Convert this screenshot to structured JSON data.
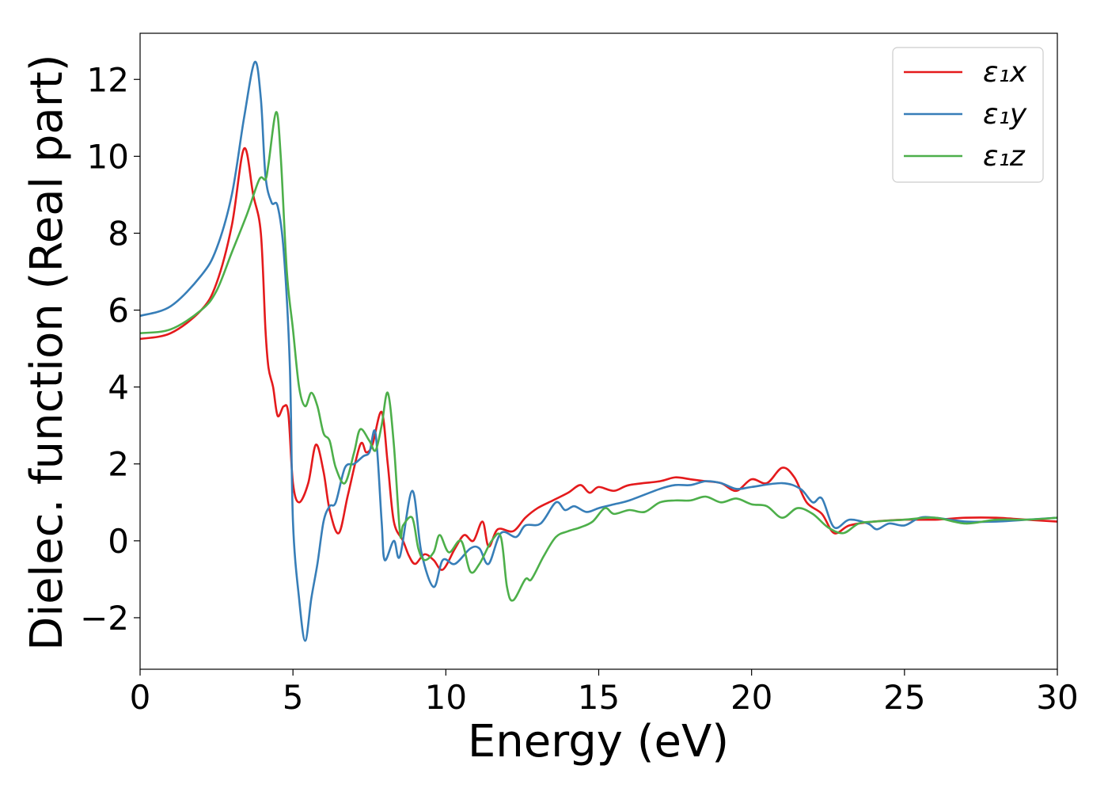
{
  "chart_data": {
    "type": "line",
    "title": "",
    "xlabel": "Energy (eV)",
    "ylabel": "Dielec. function (Real part)",
    "xlim": [
      0,
      30
    ],
    "ylim": [
      -3.34,
      13.2
    ],
    "xticks": [
      0,
      5,
      10,
      15,
      20,
      25,
      30
    ],
    "xtick_labels": [
      "0",
      "5",
      "10",
      "15",
      "20",
      "25",
      "30"
    ],
    "yticks": [
      -2,
      0,
      2,
      4,
      6,
      8,
      10,
      12
    ],
    "ytick_labels": [
      "−2",
      "0",
      "2",
      "4",
      "6",
      "8",
      "10",
      "12"
    ],
    "grid": false,
    "legend_position": "top-right",
    "series": [
      {
        "name": "ε₁x",
        "color": "#e41a1c",
        "x": [
          0,
          1,
          2,
          2.5,
          3,
          3.4,
          3.7,
          3.95,
          4.1,
          4.2,
          4.35,
          4.5,
          4.7,
          4.85,
          5.0,
          5.2,
          5.5,
          5.75,
          6.0,
          6.2,
          6.5,
          6.8,
          7.2,
          7.4,
          7.6,
          7.9,
          8.1,
          8.3,
          8.6,
          8.8,
          9.0,
          9.3,
          9.6,
          9.9,
          10.3,
          10.6,
          10.9,
          11.2,
          11.4,
          11.7,
          12.2,
          12.6,
          13,
          13.5,
          14,
          14.4,
          14.7,
          15,
          15.5,
          16,
          17,
          17.5,
          18,
          18.5,
          19,
          19.5,
          20,
          20.5,
          21,
          21.4,
          21.8,
          22.3,
          22.7,
          23.2,
          24,
          25,
          26,
          27,
          28,
          29,
          30
        ],
        "y": [
          5.25,
          5.4,
          6.0,
          6.7,
          8.2,
          10.2,
          9.0,
          8.0,
          5.5,
          4.5,
          4.0,
          3.25,
          3.5,
          3.3,
          1.5,
          1.0,
          1.5,
          2.5,
          1.8,
          0.8,
          0.2,
          1.2,
          2.5,
          2.3,
          2.5,
          3.35,
          2.0,
          0.5,
          0.0,
          -0.4,
          -0.6,
          -0.35,
          -0.5,
          -0.75,
          -0.2,
          0.15,
          0.0,
          0.5,
          -0.15,
          0.3,
          0.25,
          0.6,
          0.85,
          1.05,
          1.25,
          1.45,
          1.25,
          1.4,
          1.3,
          1.45,
          1.55,
          1.65,
          1.6,
          1.55,
          1.5,
          1.3,
          1.6,
          1.5,
          1.9,
          1.65,
          1.0,
          0.7,
          0.2,
          0.4,
          0.5,
          0.55,
          0.55,
          0.6,
          0.6,
          0.55,
          0.5
        ]
      },
      {
        "name": "ε₁y",
        "color": "#377eb8",
        "x": [
          0,
          1,
          2,
          2.5,
          3,
          3.4,
          3.75,
          3.95,
          4.1,
          4.3,
          4.5,
          4.7,
          4.9,
          5.0,
          5.2,
          5.4,
          5.6,
          5.8,
          6.0,
          6.2,
          6.4,
          6.7,
          7.0,
          7.3,
          7.5,
          7.7,
          7.9,
          8.0,
          8.3,
          8.5,
          8.9,
          9.2,
          9.6,
          9.9,
          10.3,
          10.8,
          11.1,
          11.4,
          11.8,
          12.3,
          12.6,
          13.1,
          13.6,
          13.9,
          14.2,
          14.6,
          15,
          15.5,
          16,
          17,
          17.5,
          18,
          18.5,
          19,
          19.5,
          20,
          21,
          21.6,
          22,
          22.3,
          22.7,
          23.2,
          23.8,
          24.1,
          24.5,
          25,
          25.5,
          26,
          27,
          28,
          29,
          30
        ],
        "y": [
          5.85,
          6.1,
          6.9,
          7.6,
          9.0,
          11.0,
          12.45,
          11.5,
          9.5,
          8.8,
          8.7,
          7.5,
          4.5,
          0.5,
          -1.5,
          -2.6,
          -1.5,
          -0.6,
          0.5,
          0.9,
          1.0,
          1.9,
          2.0,
          2.2,
          2.3,
          2.8,
          0.5,
          -0.5,
          0.0,
          -0.4,
          1.3,
          -0.3,
          -1.2,
          -0.5,
          -0.6,
          -0.2,
          -0.2,
          -0.6,
          0.2,
          0.1,
          0.4,
          0.45,
          1.0,
          0.8,
          0.9,
          0.75,
          0.85,
          0.95,
          1.05,
          1.35,
          1.45,
          1.45,
          1.55,
          1.5,
          1.35,
          1.4,
          1.5,
          1.35,
          1.0,
          1.1,
          0.35,
          0.55,
          0.45,
          0.3,
          0.45,
          0.4,
          0.6,
          0.6,
          0.5,
          0.5,
          0.55,
          0.6
        ]
      },
      {
        "name": "ε₁z",
        "color": "#4daf4a",
        "x": [
          0,
          1,
          2,
          2.5,
          3,
          3.5,
          3.9,
          4.1,
          4.2,
          4.45,
          4.6,
          4.8,
          5.0,
          5.2,
          5.4,
          5.6,
          5.8,
          6.0,
          6.2,
          6.4,
          6.7,
          7.0,
          7.2,
          7.5,
          7.7,
          7.9,
          8.1,
          8.3,
          8.5,
          8.6,
          8.9,
          9.1,
          9.3,
          9.6,
          9.8,
          10.1,
          10.5,
          10.8,
          11.1,
          11.5,
          11.8,
          12.0,
          12.2,
          12.6,
          12.8,
          13.2,
          13.6,
          14,
          14.4,
          14.8,
          15.2,
          15.5,
          16,
          16.5,
          17,
          17.5,
          18,
          18.5,
          19,
          19.5,
          20,
          20.5,
          21,
          21.5,
          22,
          22.5,
          23,
          23.5,
          24,
          25,
          26,
          27,
          28,
          29,
          30
        ],
        "y": [
          5.4,
          5.5,
          6.0,
          6.5,
          7.5,
          8.5,
          9.4,
          9.4,
          9.8,
          11.15,
          10.0,
          7.0,
          5.5,
          4.0,
          3.5,
          3.85,
          3.5,
          2.8,
          2.6,
          1.9,
          1.5,
          2.3,
          2.9,
          2.6,
          2.35,
          3.0,
          3.85,
          2.5,
          0.2,
          0.4,
          0.6,
          -0.2,
          -0.5,
          -0.3,
          0.15,
          -0.3,
          0.0,
          -0.8,
          -0.6,
          0.0,
          0.1,
          -1.2,
          -1.55,
          -1.0,
          -1.0,
          -0.4,
          0.1,
          0.25,
          0.35,
          0.5,
          0.85,
          0.7,
          0.8,
          0.75,
          1.0,
          1.05,
          1.05,
          1.15,
          1.0,
          1.1,
          0.95,
          0.9,
          0.6,
          0.85,
          0.7,
          0.35,
          0.2,
          0.45,
          0.5,
          0.55,
          0.6,
          0.45,
          0.55,
          0.55,
          0.6
        ]
      }
    ]
  }
}
